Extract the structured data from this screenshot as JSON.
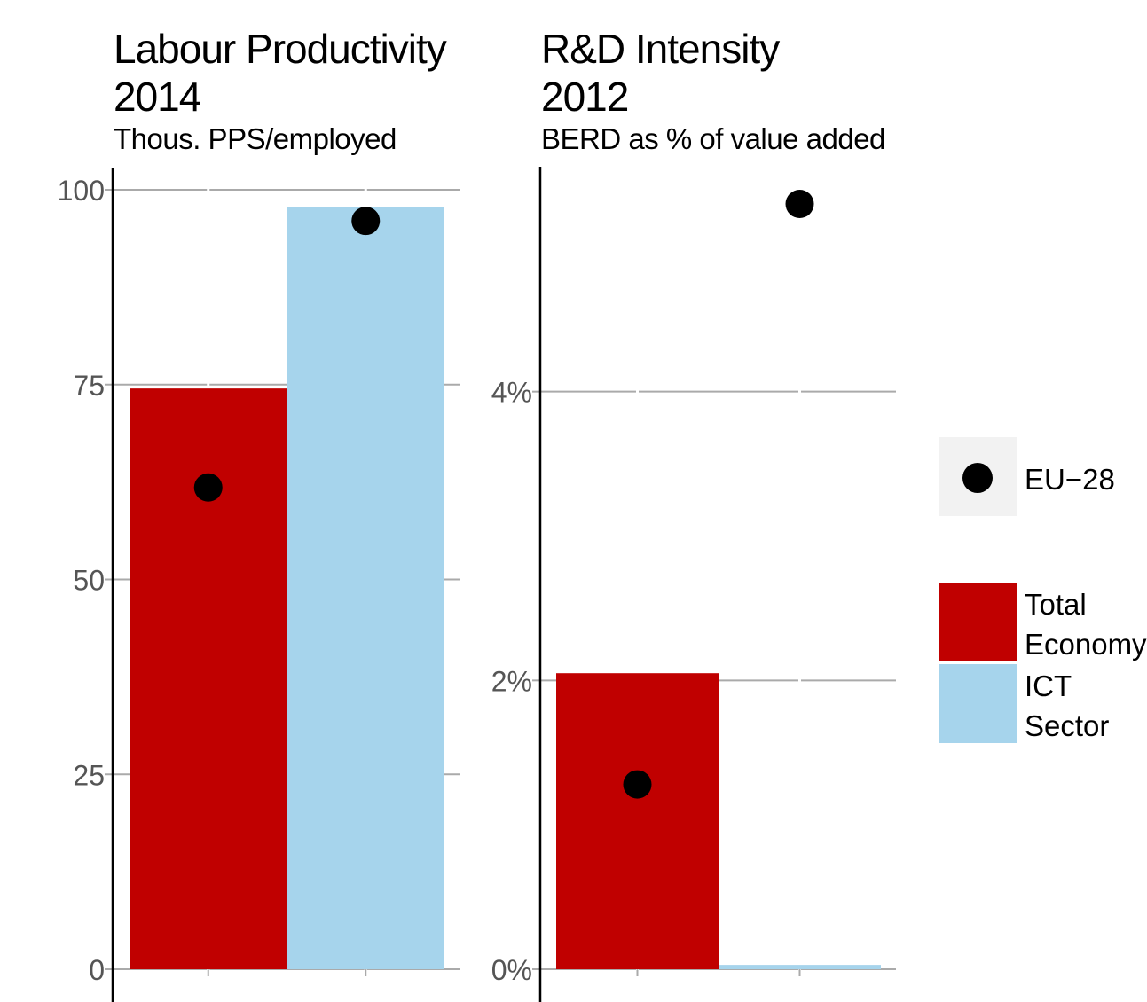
{
  "chart_data": [
    {
      "type": "bar",
      "title": "Labour Productivity",
      "year": "2014",
      "subtitle": "Thous. PPS/employed",
      "categories": [
        "Total Economy",
        "ICT Sector"
      ],
      "values": [
        74.5,
        97.8
      ],
      "eu28": [
        61.8,
        96.0
      ],
      "ylim": [
        0,
        100
      ],
      "yticks": [
        0,
        25,
        50,
        75,
        100
      ],
      "ytick_labels": [
        "0",
        "25",
        "50",
        "75",
        "100"
      ]
    },
    {
      "type": "bar",
      "title": "R&D Intensity",
      "year": "2012",
      "subtitle": "BERD as % of value added",
      "categories": [
        "Total Economy",
        "ICT Sector"
      ],
      "values": [
        2.05,
        0.03
      ],
      "eu28": [
        1.28,
        5.3
      ],
      "ylim": [
        0,
        5.3
      ],
      "yticks": [
        0,
        2,
        4
      ],
      "ytick_labels": [
        "0%",
        "2%",
        "4%"
      ]
    }
  ],
  "legend": {
    "point_label": "EU−28",
    "items": [
      {
        "label_line1": "Total",
        "label_line2": "Economy",
        "color": "#c00000"
      },
      {
        "label_line1": "ICT",
        "label_line2": "Sector",
        "color": "#a6d4ec"
      }
    ]
  },
  "colors": {
    "total_economy": "#c00000",
    "ict_sector": "#a6d4ec",
    "point": "#000000",
    "grid": "#aaaaaa",
    "axis": "#000000"
  }
}
